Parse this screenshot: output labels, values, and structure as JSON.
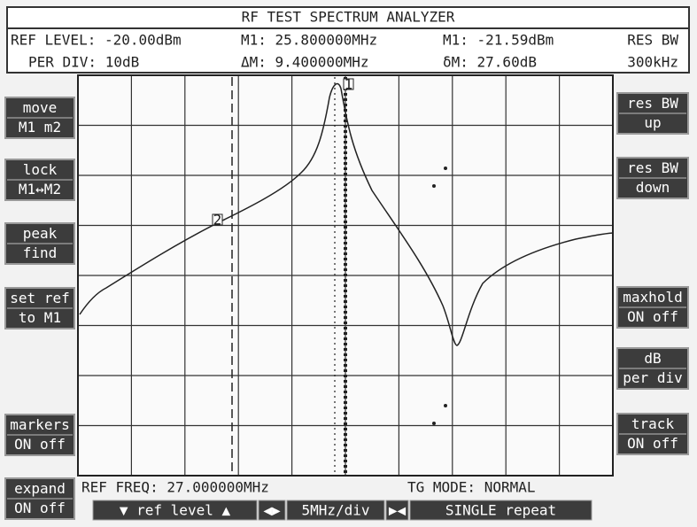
{
  "header": {
    "title": "RF TEST SPECTRUM ANALYZER",
    "info": [
      "REF LEVEL: -20.00dBm",
      "M1: 25.800000MHz",
      "M1: -21.59dBm",
      "RES BW",
      "PER DIV: 10dB",
      "ΔM: 9.400000MHz",
      "δM: 27.60dB",
      "300kHz"
    ]
  },
  "left_buttons": [
    [
      "move",
      "M1 m2"
    ],
    [
      "lock",
      "M1↔M2"
    ],
    [
      "peak",
      "find"
    ],
    [
      "set ref",
      "to M1"
    ],
    [
      "markers",
      "ON off"
    ],
    [
      "expand",
      "ON off"
    ]
  ],
  "right_buttons": [
    [
      "res BW",
      "up"
    ],
    [
      "res BW",
      "down"
    ],
    [
      "maxhold",
      "ON off"
    ],
    [
      "dB",
      "per div"
    ],
    [
      "track",
      "ON off"
    ]
  ],
  "footer": {
    "ref_freq": "REF FREQ: 27.000000MHz",
    "tg_mode": "TG MODE: NORMAL"
  },
  "bottom_bar": [
    "▼ ref level ▲",
    "◀▶",
    "5MHz/div",
    "▶◀",
    "SINGLE repeat"
  ],
  "markers": [
    "1",
    "2"
  ]
}
